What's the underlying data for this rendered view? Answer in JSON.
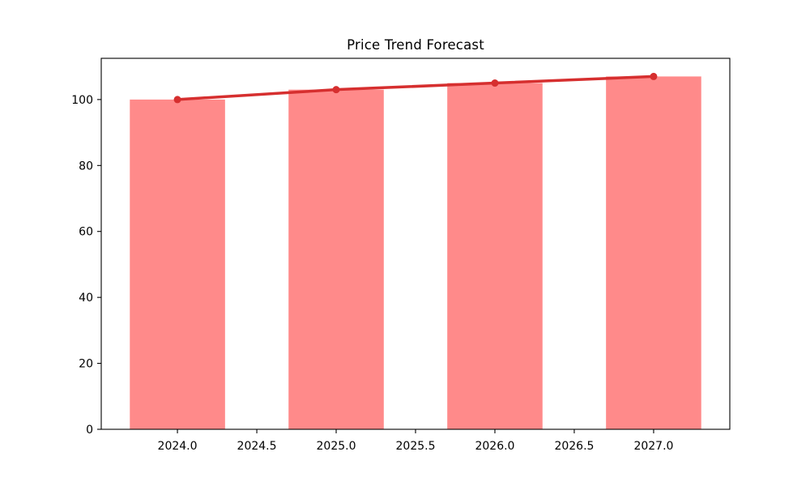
{
  "figure": {
    "title": "Price Trend Forecast"
  },
  "chart_data": {
    "type": "bar",
    "title": "Price Trend Forecast",
    "xlabel": "",
    "ylabel": "",
    "categories": [
      2024,
      2025,
      2026,
      2027
    ],
    "series": [
      {
        "name": "price-bars",
        "type": "bar",
        "values": [
          100,
          103,
          105,
          107
        ],
        "color": "#ff8a8a",
        "bar_width": 0.6
      },
      {
        "name": "trend-line",
        "type": "line",
        "values": [
          100,
          103,
          105,
          107
        ],
        "color": "#d62f2f",
        "marker": "circle",
        "marker_color": "#d62f2f"
      }
    ],
    "xlim": [
      2023.52,
      2027.48
    ],
    "ylim": [
      0,
      112.5
    ],
    "x_ticks": {
      "values": [
        2024,
        2024.5,
        2025,
        2025.5,
        2026,
        2026.5,
        2027
      ],
      "labels": [
        "2024.0",
        "2024.5",
        "2025.0",
        "2025.5",
        "2026.0",
        "2026.5",
        "2027.0"
      ]
    },
    "y_ticks": {
      "values": [
        0,
        20,
        40,
        60,
        80,
        100
      ],
      "labels": [
        "0",
        "20",
        "40",
        "60",
        "80",
        "100"
      ]
    },
    "grid": false,
    "legend": "none",
    "axis_color": "#000000",
    "text_color": "#000000",
    "background": "#ffffff"
  }
}
